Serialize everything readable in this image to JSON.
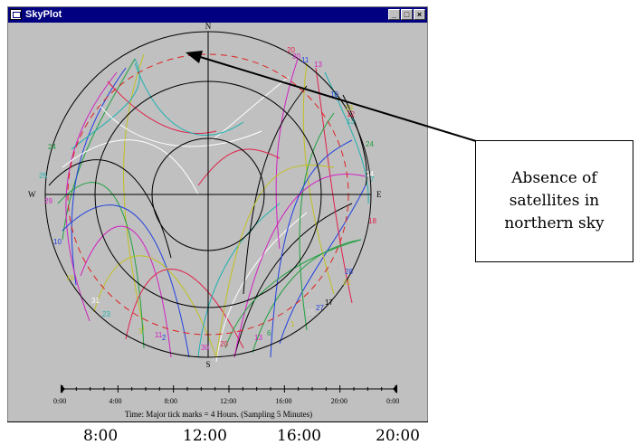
{
  "window": {
    "title": "SkyPlot",
    "buttons": {
      "minimize": "_",
      "maximize": "□",
      "close": "×"
    }
  },
  "compass": {
    "north": "N",
    "south": "S",
    "east": "E",
    "west": "W"
  },
  "satellite_labels": [
    {
      "id": "20",
      "color": "#e0204a"
    },
    {
      "id": "30",
      "color": "#d020c0"
    },
    {
      "id": "11",
      "color": "#2040e0"
    },
    {
      "id": "13",
      "color": "#d020c0"
    },
    {
      "id": "10",
      "color": "#2040e0"
    },
    {
      "id": "24",
      "color": "#20a040"
    },
    {
      "id": "25",
      "color": "#20b0b0"
    },
    {
      "id": "29",
      "color": "#d020c0"
    },
    {
      "id": "10",
      "color": "#2040e0"
    },
    {
      "id": "16",
      "color": "#c0c020"
    },
    {
      "id": "31",
      "color": "#ffffff"
    },
    {
      "id": "23",
      "color": "#20b0b0"
    },
    {
      "id": "3",
      "color": "#c0c020"
    },
    {
      "id": "11",
      "color": "#d020c0"
    },
    {
      "id": "2",
      "color": "#2040e0"
    },
    {
      "id": "30",
      "color": "#d020c0"
    },
    {
      "id": "20",
      "color": "#e0204a"
    },
    {
      "id": "13",
      "color": "#d020c0"
    },
    {
      "id": "6",
      "color": "#20a040"
    },
    {
      "id": "1",
      "color": "#c0c020"
    },
    {
      "id": "15",
      "color": "#d8d8d8"
    },
    {
      "id": "27",
      "color": "#2040e0"
    },
    {
      "id": "17",
      "color": "#000000"
    },
    {
      "id": "28",
      "color": "#2040e0"
    },
    {
      "id": "21",
      "color": "#c0c020"
    },
    {
      "id": "18",
      "color": "#e0204a"
    },
    {
      "id": "7",
      "color": "#20b0b0"
    },
    {
      "id": "24",
      "color": "#20a040"
    },
    {
      "id": "14",
      "color": "#ffffff"
    },
    {
      "id": "19",
      "color": "#c0c020"
    },
    {
      "id": "12",
      "color": "#e0204a"
    },
    {
      "id": "13",
      "color": "#20b0b0"
    }
  ],
  "timeline": {
    "ticks": [
      "0:00",
      "4:00",
      "8:00",
      "12:00",
      "16:00",
      "20:00",
      "0:00"
    ],
    "caption": "Time: Major tick marks = 4 Hours. (Sampling 5 Minutes)"
  },
  "bottom_axis": [
    "8:00",
    "12:00",
    "16:00",
    "20:00"
  ],
  "callout": {
    "text": "Absence of\nsatellites in\nnorthern sky"
  }
}
